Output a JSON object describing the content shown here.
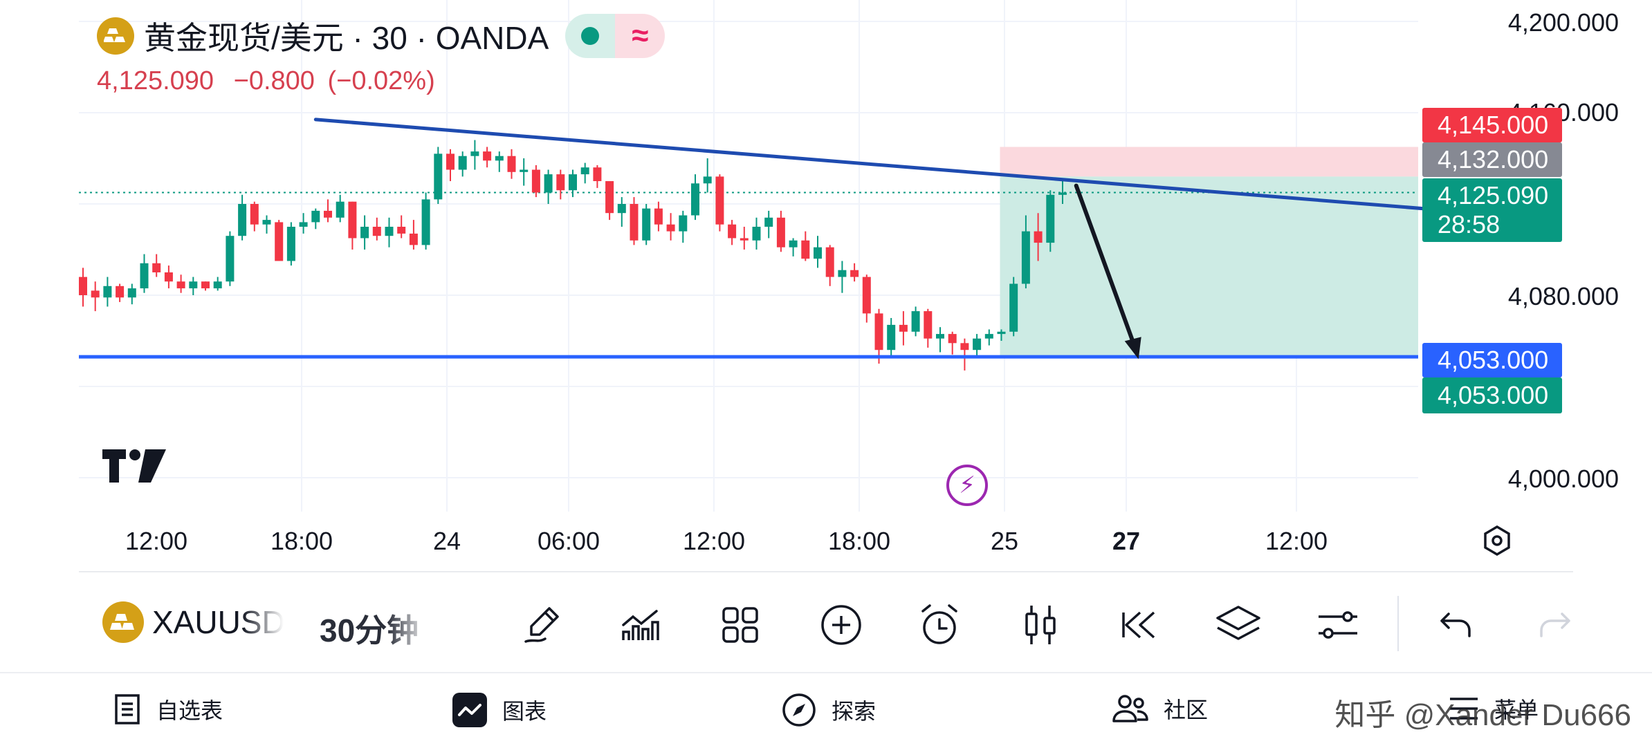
{
  "header": {
    "title": "黄金现货/美元 · 30 · OANDA",
    "last_price": "4,125.090",
    "change": "−0.800",
    "change_pct": "(−0.02%)"
  },
  "price_axis": {
    "labels": [
      "4,200.000",
      "4,160.000",
      "4,080.000",
      "4,000.000"
    ]
  },
  "price_tags": {
    "stop": "4,145.000",
    "entry": "4,132.000",
    "current": "4,125.090",
    "countdown": "28:58",
    "line": "4,053.000",
    "target": "4,053.000"
  },
  "time_axis": {
    "labels": [
      "12:00",
      "18:00",
      "24",
      "06:00",
      "12:00",
      "18:00",
      "25",
      "27",
      "12:00"
    ]
  },
  "toolbar": {
    "symbol": "XAUUSD",
    "interval": "30分钟"
  },
  "bottom_nav": {
    "watchlist": "自选表",
    "chart": "图表",
    "explore": "探索",
    "community": "社区",
    "menu": "菜单"
  },
  "watermark": "知乎 @Xander Du666",
  "colors": {
    "up": "#089981",
    "down": "#f23645",
    "trendline": "#1e4bb0",
    "support": "#2962ff",
    "profit_zone": "#cdebe4",
    "loss_zone": "#fbd9de"
  },
  "chart_data": {
    "type": "candlestick",
    "symbol": "XAUUSD",
    "timeframe": "30",
    "candles": [
      [
        4088,
        4092,
        4075,
        4080
      ],
      [
        4082,
        4086,
        4073,
        4079
      ],
      [
        4079,
        4088,
        4075,
        4084
      ],
      [
        4084,
        4085,
        4077,
        4079
      ],
      [
        4079,
        4085,
        4076,
        4083
      ],
      [
        4083,
        4098,
        4081,
        4094
      ],
      [
        4094,
        4098,
        4088,
        4090
      ],
      [
        4090,
        4093,
        4083,
        4086
      ],
      [
        4086,
        4089,
        4081,
        4083
      ],
      [
        4083,
        4088,
        4080,
        4086
      ],
      [
        4086,
        4086,
        4082,
        4083
      ],
      [
        4083,
        4088,
        4082,
        4086
      ],
      [
        4086,
        4108,
        4084,
        4106
      ],
      [
        4106,
        4124,
        4104,
        4120
      ],
      [
        4120,
        4121,
        4108,
        4111
      ],
      [
        4111,
        4115,
        4107,
        4113
      ],
      [
        4112,
        4113,
        4095,
        4095
      ],
      [
        4095,
        4112,
        4093,
        4110
      ],
      [
        4110,
        4116,
        4107,
        4112
      ],
      [
        4112,
        4118,
        4109,
        4117
      ],
      [
        4117,
        4122,
        4112,
        4114
      ],
      [
        4114,
        4124,
        4112,
        4121
      ],
      [
        4121,
        4121,
        4100,
        4105
      ],
      [
        4105,
        4115,
        4100,
        4110
      ],
      [
        4110,
        4114,
        4104,
        4106
      ],
      [
        4106,
        4114,
        4101,
        4110
      ],
      [
        4110,
        4115,
        4105,
        4107
      ],
      [
        4107,
        4113,
        4100,
        4102
      ],
      [
        4102,
        4125,
        4100,
        4122
      ],
      [
        4122,
        4145,
        4120,
        4142
      ],
      [
        4142,
        4144,
        4130,
        4135
      ],
      [
        4135,
        4143,
        4132,
        4141
      ],
      [
        4141,
        4148,
        4135,
        4143
      ],
      [
        4143,
        4145,
        4136,
        4139
      ],
      [
        4139,
        4143,
        4134,
        4141
      ],
      [
        4141,
        4144,
        4131,
        4134
      ],
      [
        4134,
        4140,
        4128,
        4135
      ],
      [
        4135,
        4137,
        4123,
        4125
      ],
      [
        4125,
        4135,
        4120,
        4133
      ],
      [
        4133,
        4135,
        4122,
        4126
      ],
      [
        4126,
        4135,
        4123,
        4133
      ],
      [
        4133,
        4138,
        4129,
        4136
      ],
      [
        4136,
        4137,
        4127,
        4130
      ],
      [
        4130,
        4130,
        4113,
        4116
      ],
      [
        4116,
        4123,
        4110,
        4120
      ],
      [
        4120,
        4123,
        4102,
        4104
      ],
      [
        4104,
        4120,
        4102,
        4118
      ],
      [
        4118,
        4121,
        4108,
        4111
      ],
      [
        4111,
        4116,
        4104,
        4108
      ],
      [
        4108,
        4117,
        4103,
        4115
      ],
      [
        4115,
        4133,
        4113,
        4129
      ],
      [
        4129,
        4140,
        4125,
        4132
      ],
      [
        4132,
        4133,
        4108,
        4111
      ],
      [
        4111,
        4113,
        4102,
        4105
      ],
      [
        4105,
        4110,
        4100,
        4104
      ],
      [
        4104,
        4114,
        4100,
        4110
      ],
      [
        4110,
        4117,
        4105,
        4114
      ],
      [
        4114,
        4117,
        4099,
        4101
      ],
      [
        4101,
        4105,
        4097,
        4104
      ],
      [
        4104,
        4108,
        4095,
        4096
      ],
      [
        4096,
        4106,
        4092,
        4101
      ],
      [
        4101,
        4102,
        4084,
        4088
      ],
      [
        4088,
        4095,
        4081,
        4091
      ],
      [
        4091,
        4094,
        4086,
        4088
      ],
      [
        4088,
        4089,
        4068,
        4072
      ],
      [
        4072,
        4074,
        4050,
        4056
      ],
      [
        4056,
        4070,
        4053,
        4067
      ],
      [
        4067,
        4073,
        4058,
        4064
      ],
      [
        4064,
        4075,
        4062,
        4073
      ],
      [
        4073,
        4074,
        4057,
        4061
      ],
      [
        4061,
        4066,
        4055,
        4063
      ],
      [
        4063,
        4064,
        4054,
        4059
      ],
      [
        4059,
        4061,
        4047,
        4056
      ],
      [
        4056,
        4063,
        4053,
        4061
      ],
      [
        4061,
        4065,
        4058,
        4063
      ],
      [
        4063,
        4065,
        4060,
        4064
      ],
      [
        4064,
        4088,
        4062,
        4085
      ],
      [
        4085,
        4115,
        4083,
        4108
      ],
      [
        4108,
        4116,
        4095,
        4103
      ],
      [
        4103,
        4126,
        4099,
        4124
      ],
      [
        4124,
        4130,
        4120,
        4125
      ]
    ],
    "trendline_start": {
      "candle": 19,
      "price": 4157
    },
    "trendline_end": {
      "candle": 114,
      "price": 4116
    },
    "support_level": 4053,
    "position": {
      "entry": 4132,
      "stop": 4145,
      "target": 4053,
      "start_candle": 75,
      "direction": "short"
    },
    "projection_arrow": {
      "from_price": 4128,
      "to_price": 4052
    }
  }
}
